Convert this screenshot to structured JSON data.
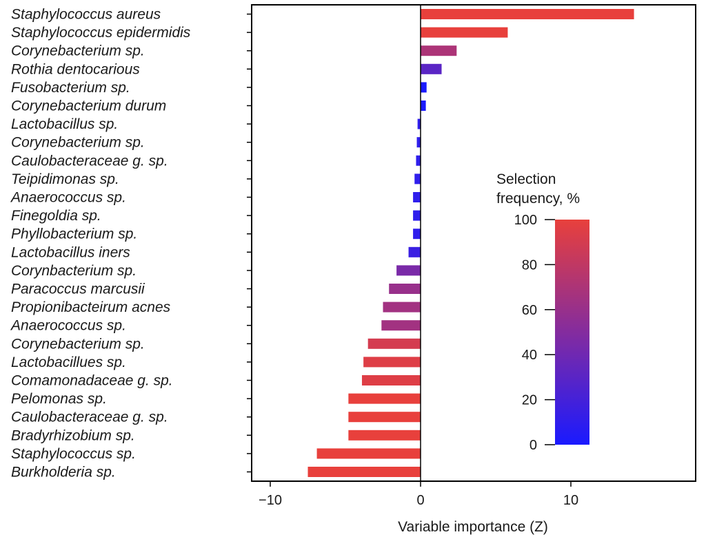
{
  "chart_data": {
    "type": "bar",
    "orientation": "horizontal",
    "categories": [
      "Staphylococcus aureus",
      "Staphylococcus epidermidis",
      "Corynebacterium sp.",
      "Rothia dentocarious",
      "Fusobacterium sp.",
      "Corynebacterium durum",
      "Lactobacillus sp.",
      "Corynebacterium sp.",
      "Caulobacteraceae g. sp.",
      "Teipidimonas sp.",
      "Anaerococcus sp.",
      "Finegoldia sp.",
      "Phyllobacterium sp.",
      "Lactobacillus iners",
      "Corynbacterium sp.",
      "Paracoccus marcusii",
      "Propionibacteirum acnes",
      "Anaerococcus sp.",
      "Corynebacterium sp.",
      "Lactobacillues sp.",
      "Comamonadaceae g. sp.",
      "Pelomonas sp.",
      "Caulobacteraceae g. sp.",
      "Bradyrhizobium sp.",
      "Staphylococcus sp.",
      "Burkholderia sp."
    ],
    "values": [
      14.2,
      5.8,
      2.4,
      1.4,
      0.4,
      0.35,
      -0.2,
      -0.25,
      -0.3,
      -0.4,
      -0.5,
      -0.5,
      -0.5,
      -0.8,
      -1.6,
      -2.1,
      -2.5,
      -2.6,
      -3.5,
      -3.8,
      -3.9,
      -4.8,
      -4.8,
      -4.8,
      -6.9,
      -7.5
    ],
    "selection_frequency": [
      100,
      100,
      70,
      30,
      0,
      0,
      10,
      10,
      10,
      10,
      10,
      10,
      10,
      15,
      45,
      60,
      65,
      65,
      90,
      95,
      95,
      100,
      100,
      100,
      100,
      100
    ],
    "xlabel": "Variable importance (Z)",
    "xlim": [
      -11,
      18
    ],
    "xticks": [
      -10,
      0,
      10
    ],
    "xtick_labels": [
      "−10",
      "0",
      "10"
    ],
    "grid": false,
    "colorbar": {
      "title_lines": [
        "Selection",
        "frequency, %"
      ],
      "range": [
        0,
        100
      ],
      "ticks": [
        100,
        80,
        60,
        40,
        20,
        0
      ],
      "color_low": "#1a1aff",
      "color_mid": "#8a2a9a",
      "color_high": "#e8403c",
      "placement": "right"
    }
  }
}
